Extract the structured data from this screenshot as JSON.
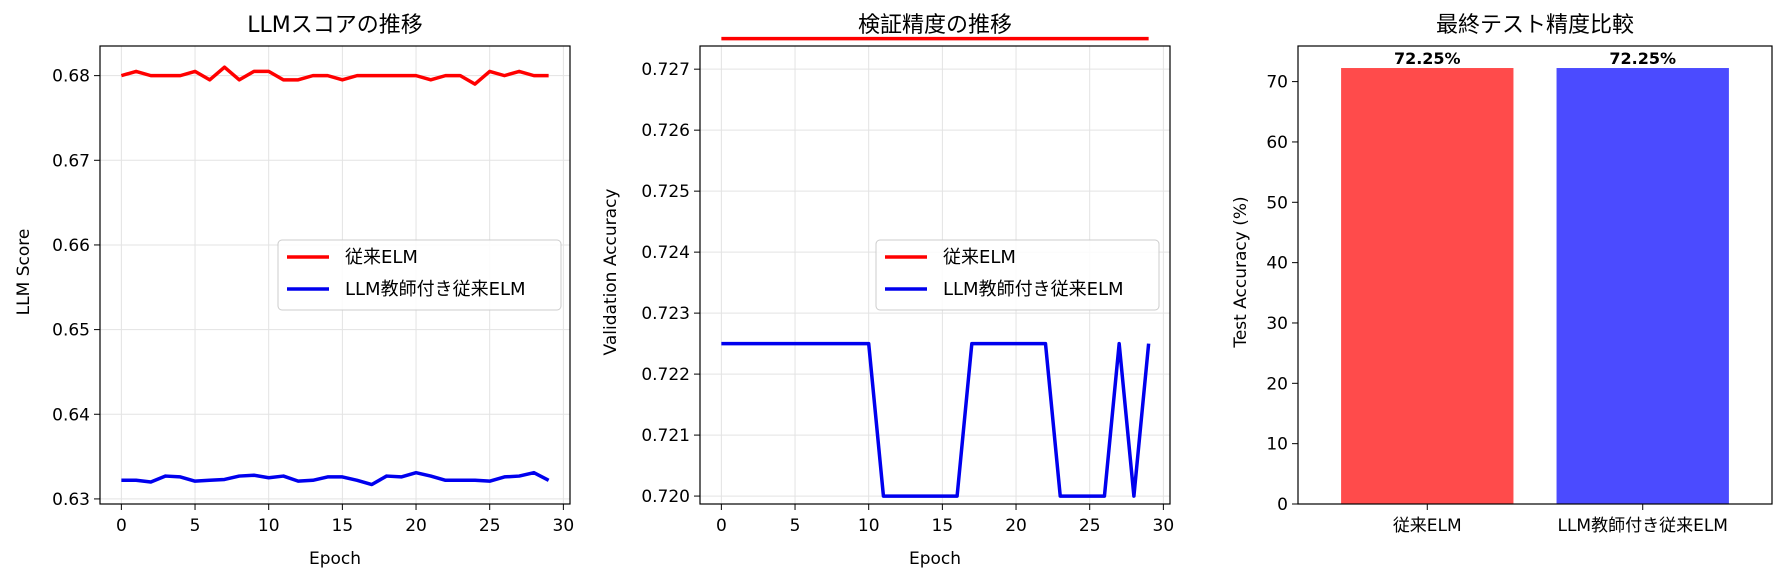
{
  "chart_data": [
    {
      "type": "line",
      "title": "LLMスコアの推移",
      "xlabel": "Epoch",
      "ylabel": "LLM Score",
      "xlim": [
        -1.45,
        30.45
      ],
      "ylim": [
        0.6294,
        0.6835
      ],
      "xticks": [
        0,
        5,
        10,
        15,
        20,
        25,
        30
      ],
      "yticks": [
        0.63,
        0.64,
        0.65,
        0.66,
        0.67,
        0.68
      ],
      "yticks_text": [
        "0.63",
        "0.64",
        "0.65",
        "0.66",
        "0.67",
        "0.68"
      ],
      "grid": true,
      "legend": "center-right",
      "x": [
        0,
        1,
        2,
        3,
        4,
        5,
        6,
        7,
        8,
        9,
        10,
        11,
        12,
        13,
        14,
        15,
        16,
        17,
        18,
        19,
        20,
        21,
        22,
        23,
        24,
        25,
        26,
        27,
        28,
        29
      ],
      "series": [
        {
          "name": "従来ELM",
          "color": "#ff0000",
          "values": [
            0.68,
            0.6805,
            0.68,
            0.68,
            0.68,
            0.6805,
            0.6795,
            0.681,
            0.6795,
            0.6805,
            0.6805,
            0.6795,
            0.6795,
            0.68,
            0.68,
            0.6795,
            0.68,
            0.68,
            0.68,
            0.68,
            0.68,
            0.6795,
            0.68,
            0.68,
            0.679,
            0.6805,
            0.68,
            0.6805,
            0.68,
            0.68
          ]
        },
        {
          "name": "LLM教師付き従来ELM",
          "color": "#0000ee",
          "values": [
            0.6322,
            0.6322,
            0.632,
            0.6327,
            0.6326,
            0.6321,
            0.6322,
            0.6323,
            0.6327,
            0.6328,
            0.6325,
            0.6327,
            0.6321,
            0.6322,
            0.6326,
            0.6326,
            0.6322,
            0.6317,
            0.6327,
            0.6326,
            0.6331,
            0.6327,
            0.6322,
            0.6322,
            0.6322,
            0.6321,
            0.6326,
            0.6327,
            0.6331,
            0.6322
          ]
        }
      ]
    },
    {
      "type": "line",
      "title": "検証精度の推移",
      "xlabel": "Epoch",
      "ylabel": "Validation Accuracy",
      "xlim": [
        -1.45,
        30.45
      ],
      "ylim": [
        0.71987,
        0.72738
      ],
      "xticks": [
        0,
        5,
        10,
        15,
        20,
        25,
        30
      ],
      "yticks": [
        0.72,
        0.721,
        0.722,
        0.723,
        0.724,
        0.725,
        0.726,
        0.727
      ],
      "yticks_text": [
        "0.720",
        "0.721",
        "0.722",
        "0.723",
        "0.724",
        "0.725",
        "0.726",
        "0.727"
      ],
      "grid": true,
      "legend": "center-right",
      "x": [
        0,
        1,
        2,
        3,
        4,
        5,
        6,
        7,
        8,
        9,
        10,
        11,
        12,
        13,
        14,
        15,
        16,
        17,
        18,
        19,
        20,
        21,
        22,
        23,
        24,
        25,
        26,
        27,
        28,
        29
      ],
      "series": [
        {
          "name": "従来ELM",
          "color": "#ff0000",
          "values": [
            0.7275,
            0.7275,
            0.7275,
            0.7275,
            0.7275,
            0.7275,
            0.7275,
            0.7275,
            0.7275,
            0.7275,
            0.7275,
            0.7275,
            0.7275,
            0.7275,
            0.7275,
            0.7275,
            0.7275,
            0.7275,
            0.7275,
            0.7275,
            0.7275,
            0.7275,
            0.7275,
            0.7275,
            0.7275,
            0.7275,
            0.7275,
            0.7275,
            0.7275,
            0.7275
          ]
        },
        {
          "name": "LLM教師付き従来ELM",
          "color": "#0000ee",
          "values": [
            0.7225,
            0.7225,
            0.7225,
            0.7225,
            0.7225,
            0.7225,
            0.7225,
            0.7225,
            0.7225,
            0.7225,
            0.7225,
            0.72,
            0.72,
            0.72,
            0.72,
            0.72,
            0.72,
            0.7225,
            0.7225,
            0.7225,
            0.7225,
            0.7225,
            0.7225,
            0.72,
            0.72,
            0.72,
            0.72,
            0.7225,
            0.72,
            0.7225
          ]
        }
      ]
    },
    {
      "type": "bar",
      "title": "最終テスト精度比較",
      "xlabel": "",
      "ylabel": "Test Accuracy (%)",
      "ylim": [
        0,
        75.9
      ],
      "yticks": [
        0,
        10,
        20,
        30,
        40,
        50,
        60,
        70
      ],
      "yticks_text": [
        "0",
        "10",
        "20",
        "30",
        "40",
        "50",
        "60",
        "70"
      ],
      "grid": false,
      "categories": [
        "従来ELM",
        "LLM教師付き従来ELM"
      ],
      "values": [
        72.25,
        72.25
      ],
      "value_labels": [
        "72.25%",
        "72.25%"
      ],
      "colors": [
        "#ff4b4b",
        "#4b4bff"
      ]
    }
  ]
}
